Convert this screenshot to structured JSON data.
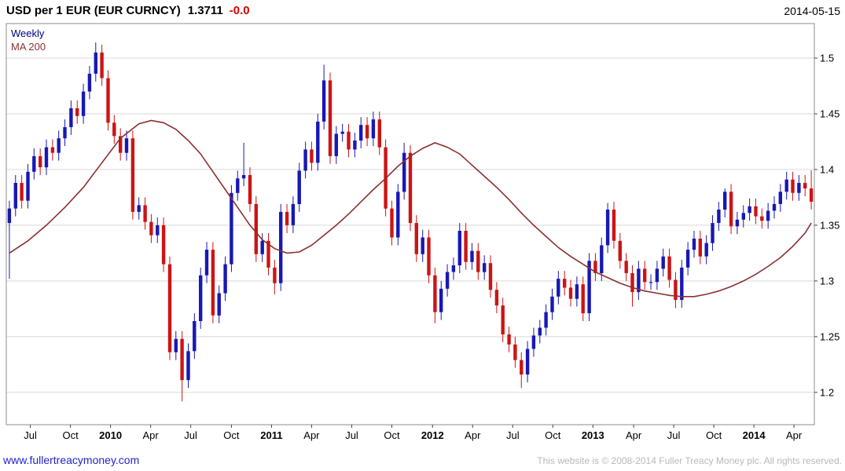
{
  "header": {
    "title": "USD per 1 EUR (EUR CURNCY)",
    "price": "1.3711",
    "change": "-0.0",
    "date": "2014-05-15"
  },
  "legend": {
    "series": "Weekly",
    "series_color": "#00008b",
    "ma": "MA 200",
    "ma_color": "#8b3030"
  },
  "footer": {
    "link": "www.fullertreacymoney.com",
    "copyright": "This website is © 2008-2014 Fuller Treacy Money plc. All rights reserved."
  },
  "chart_data": {
    "type": "candlestick",
    "title": "USD per 1 EUR (EUR CURNCY)",
    "interval": "Weekly",
    "overlay": "MA 200",
    "last_close": 1.3711,
    "change_label": "-0.0",
    "date": "2014-05-15",
    "ylim": [
      1.171,
      1.531
    ],
    "yticks": [
      {
        "v": 1.5,
        "label": "1.5"
      },
      {
        "v": 1.45,
        "label": "1.45"
      },
      {
        "v": 1.4,
        "label": "1.4"
      },
      {
        "v": 1.35,
        "label": "1.35"
      },
      {
        "v": 1.3,
        "label": "1.3"
      },
      {
        "v": 1.25,
        "label": "1.25"
      },
      {
        "v": 1.2,
        "label": "1.2"
      }
    ],
    "xticks": [
      {
        "label": "Jul",
        "i": 3.4
      },
      {
        "label": "Oct",
        "i": 9.9
      },
      {
        "label": "2010",
        "i": 16.4,
        "bold": true
      },
      {
        "label": "Apr",
        "i": 22.9
      },
      {
        "label": "Jul",
        "i": 29.4
      },
      {
        "label": "Oct",
        "i": 36.0
      },
      {
        "label": "2011",
        "i": 42.5,
        "bold": true
      },
      {
        "label": "Apr",
        "i": 49.0
      },
      {
        "label": "Jul",
        "i": 55.5
      },
      {
        "label": "Oct",
        "i": 62.0
      },
      {
        "label": "2012",
        "i": 68.6,
        "bold": true
      },
      {
        "label": "Apr",
        "i": 75.1
      },
      {
        "label": "Jul",
        "i": 81.6
      },
      {
        "label": "Oct",
        "i": 88.1
      },
      {
        "label": "2013",
        "i": 94.6,
        "bold": true
      },
      {
        "label": "Apr",
        "i": 101.2
      },
      {
        "label": "Jul",
        "i": 107.7
      },
      {
        "label": "Oct",
        "i": 114.2
      },
      {
        "label": "2014",
        "i": 120.7,
        "bold": true
      },
      {
        "label": "Apr",
        "i": 127.2
      }
    ],
    "up_color": "#1818b4",
    "down_color": "#cc1414",
    "ma_color": "#8b3030",
    "grid_color": "#d9d9d9",
    "border_color": "#8c8c8c",
    "first_open": 1.352,
    "wick": 0.007,
    "closes": [
      1.365,
      1.388,
      1.372,
      1.398,
      1.412,
      1.402,
      1.42,
      1.415,
      1.428,
      1.438,
      1.455,
      1.448,
      1.47,
      1.486,
      1.505,
      1.482,
      1.442,
      1.43,
      1.415,
      1.428,
      1.362,
      1.368,
      1.353,
      1.341,
      1.35,
      1.315,
      1.236,
      1.248,
      1.211,
      1.237,
      1.264,
      1.305,
      1.328,
      1.269,
      1.289,
      1.315,
      1.379,
      1.392,
      1.395,
      1.369,
      1.324,
      1.336,
      1.312,
      1.298,
      1.362,
      1.35,
      1.369,
      1.399,
      1.418,
      1.406,
      1.443,
      1.48,
      1.412,
      1.432,
      1.434,
      1.418,
      1.426,
      1.44,
      1.428,
      1.445,
      1.42,
      1.365,
      1.339,
      1.38,
      1.415,
      1.352,
      1.324,
      1.339,
      1.305,
      1.272,
      1.293,
      1.308,
      1.314,
      1.345,
      1.317,
      1.327,
      1.308,
      1.316,
      1.292,
      1.278,
      1.252,
      1.243,
      1.229,
      1.216,
      1.239,
      1.251,
      1.258,
      1.272,
      1.286,
      1.302,
      1.294,
      1.284,
      1.297,
      1.271,
      1.318,
      1.307,
      1.332,
      1.364,
      1.336,
      1.318,
      1.307,
      1.29,
      1.311,
      1.299,
      1.299,
      1.311,
      1.322,
      1.301,
      1.283,
      1.312,
      1.328,
      1.338,
      1.322,
      1.334,
      1.352,
      1.364,
      1.38,
      1.349,
      1.355,
      1.361,
      1.367,
      1.358,
      1.354,
      1.363,
      1.369,
      1.38,
      1.391,
      1.379,
      1.388,
      1.383,
      1.3711
    ],
    "high_overrides": {
      "14": 1.514,
      "38": 1.424,
      "51": 1.494,
      "64": 1.424,
      "97": 1.37,
      "116": 1.383,
      "130": 1.3993
    },
    "low_overrides": {
      "0": 1.302,
      "28": 1.192,
      "43": 1.288,
      "69": 1.262,
      "83": 1.204,
      "101": 1.277,
      "108": 1.2755
    },
    "ma200_points": [
      [
        0,
        1.325
      ],
      [
        3,
        1.336
      ],
      [
        6,
        1.35
      ],
      [
        9,
        1.366
      ],
      [
        12,
        1.384
      ],
      [
        15,
        1.406
      ],
      [
        18,
        1.428
      ],
      [
        21,
        1.441
      ],
      [
        23,
        1.444
      ],
      [
        25,
        1.442
      ],
      [
        27,
        1.436
      ],
      [
        29,
        1.426
      ],
      [
        31,
        1.414
      ],
      [
        33,
        1.398
      ],
      [
        35,
        1.382
      ],
      [
        37,
        1.366
      ],
      [
        39,
        1.35
      ],
      [
        41,
        1.337
      ],
      [
        43,
        1.329
      ],
      [
        45,
        1.325
      ],
      [
        47,
        1.326
      ],
      [
        49,
        1.332
      ],
      [
        51,
        1.341
      ],
      [
        53,
        1.35
      ],
      [
        55,
        1.36
      ],
      [
        57,
        1.371
      ],
      [
        59,
        1.382
      ],
      [
        61,
        1.392
      ],
      [
        63,
        1.403
      ],
      [
        65,
        1.412
      ],
      [
        67,
        1.419
      ],
      [
        69,
        1.424
      ],
      [
        71,
        1.42
      ],
      [
        73,
        1.414
      ],
      [
        75,
        1.404
      ],
      [
        77,
        1.394
      ],
      [
        79,
        1.384
      ],
      [
        81,
        1.373
      ],
      [
        83,
        1.361
      ],
      [
        85,
        1.35
      ],
      [
        87,
        1.34
      ],
      [
        89,
        1.33
      ],
      [
        91,
        1.322
      ],
      [
        93,
        1.315
      ],
      [
        95,
        1.308
      ],
      [
        97,
        1.303
      ],
      [
        99,
        1.298
      ],
      [
        101,
        1.294
      ],
      [
        103,
        1.291
      ],
      [
        105,
        1.289
      ],
      [
        107,
        1.287
      ],
      [
        109,
        1.286
      ],
      [
        111,
        1.286
      ],
      [
        113,
        1.288
      ],
      [
        115,
        1.291
      ],
      [
        117,
        1.295
      ],
      [
        119,
        1.3
      ],
      [
        121,
        1.306
      ],
      [
        123,
        1.313
      ],
      [
        125,
        1.321
      ],
      [
        127,
        1.331
      ],
      [
        129,
        1.343
      ],
      [
        130,
        1.352
      ]
    ]
  }
}
